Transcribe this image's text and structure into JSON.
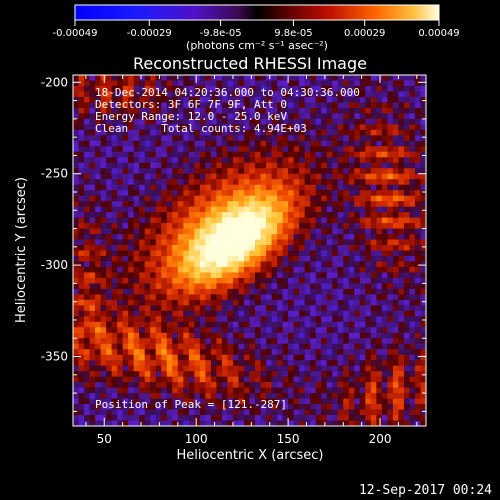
{
  "chart_data": {
    "type": "heatmap",
    "title": "Reconstructed RHESSI Image",
    "xlabel": "Heliocentric X (arcsec)",
    "ylabel": "Heliocentric Y (arcsec)",
    "xlim": [
      33,
      225
    ],
    "ylim": [
      -388,
      -196
    ],
    "xticks": [
      50,
      100,
      150,
      200
    ],
    "yticks": [
      -200,
      -250,
      -300,
      -350
    ],
    "colorbar": {
      "range": [
        -0.00049,
        0.00049
      ],
      "ticks": [
        -0.00049,
        -0.00029,
        -9.8e-05,
        9.8e-05,
        0.00029,
        0.00049
      ],
      "tick_labels": [
        "-0.00049",
        "-0.00029",
        "-9.8e-05",
        "9.8e-05",
        "0.00029",
        "0.00049"
      ],
      "unit_label": "(photons cm⁻² s⁻¹ asec⁻²)"
    },
    "annotations": [
      "18-Dec-2014 04:20:36.000 to 04:30:36.000",
      "Detectors: 3F 6F 7F 9F, Att 0",
      "Energy Range: 12.0 - 25.0 keV",
      "Clean     Total counts: 4.94E+03"
    ],
    "peak_label": "Position of Peak = [121.-287]",
    "peak": [
      121,
      -287
    ]
  },
  "footer": {
    "timestamp": "12-Sep-2017 00:24"
  }
}
